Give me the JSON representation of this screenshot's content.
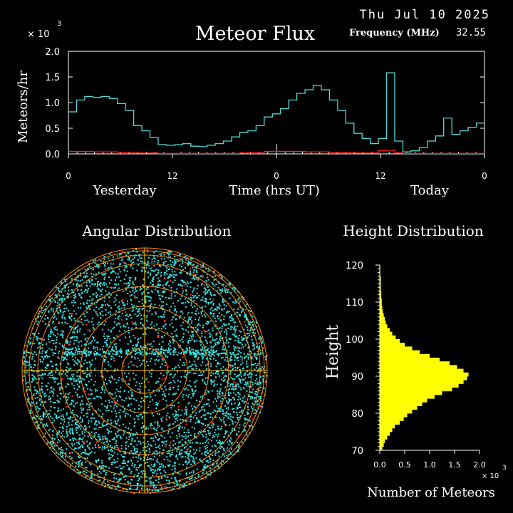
{
  "header": {
    "date": "Thu Jul 10 2025",
    "title": "Meteor Flux",
    "frequency_label": "Frequency (MHz)",
    "frequency_value": "32.55"
  },
  "colors": {
    "flux_line": "#4fd9d9",
    "baseline_line": "#ff2020",
    "height_bars": "#ffff00",
    "angular_points": "#33e6e6",
    "angular_points_alt": "#ff2020",
    "angular_rings": "#ff8c00",
    "angular_grid": "#ffd000"
  },
  "chart_data": [
    {
      "type": "line",
      "title": "Meteor Flux",
      "xlabel": "Time (hrs UT)",
      "ylabel": "Meteors/hr",
      "y_multiplier": "× 10",
      "y_multiplier_exp": "3",
      "ylim": [
        0,
        2.0
      ],
      "y_ticks": [
        "0.0",
        "0.5",
        "1.0",
        "1.5",
        "2.0"
      ],
      "x_ticks": [
        "0",
        "12",
        "0",
        "12",
        "0"
      ],
      "x_day_labels": [
        "Yesterday",
        "Today"
      ],
      "xlim": [
        0,
        48
      ],
      "series": [
        {
          "style": "step",
          "values": [
            0.82,
            1.05,
            1.12,
            1.1,
            1.12,
            1.08,
            0.98,
            0.85,
            0.55,
            0.45,
            0.32,
            0.18,
            0.17,
            0.18,
            0.2,
            0.15,
            0.14,
            0.17,
            0.2,
            0.25,
            0.33,
            0.42,
            0.45,
            0.55,
            0.72,
            0.78,
            0.88,
            1.05,
            1.18,
            1.25,
            1.33,
            1.25,
            1.05,
            0.85,
            0.6,
            0.4,
            0.3,
            0.2,
            0.3,
            1.58,
            0.25,
            0.04,
            0.06,
            0.12,
            0.25,
            0.35,
            0.7,
            0.38,
            0.45,
            0.52,
            0.6
          ]
        },
        {
          "style": "step",
          "values": [
            0.05,
            0.05,
            0.05,
            0.04,
            0.04,
            0.04,
            0.03,
            0.03,
            0.02,
            0.02,
            0.02,
            0.01,
            0.01,
            0.01,
            0.01,
            0.01,
            0.01,
            0.01,
            0.01,
            0.01,
            0.01,
            0.02,
            0.03,
            0.03,
            0.05,
            0.05,
            0.05,
            0.05,
            0.05,
            0.04,
            0.04,
            0.04,
            0.03,
            0.03,
            0.03,
            0.02,
            0.02,
            0.02,
            0.06,
            0.07,
            0.02,
            0.01,
            0.01,
            0.01,
            0.01,
            0.01,
            0.01,
            0.01,
            0.01,
            0.01,
            0.01
          ]
        }
      ]
    },
    {
      "type": "bar",
      "orientation": "horizontal",
      "title": "Height Distribution",
      "xlabel": "Number of Meteors",
      "x_multiplier": "× 10",
      "x_multiplier_exp": "3",
      "ylabel": "Height",
      "xlim": [
        0,
        2.0
      ],
      "x_ticks": [
        "0.0",
        "0.5",
        "1.0",
        "1.5",
        "2.0"
      ],
      "ylim": [
        70,
        120
      ],
      "y_ticks": [
        "70",
        "80",
        "90",
        "100",
        "110",
        "120"
      ],
      "bins_from": 70,
      "bin_width": 1,
      "values": [
        0.05,
        0.08,
        0.1,
        0.15,
        0.2,
        0.25,
        0.3,
        0.4,
        0.48,
        0.55,
        0.65,
        0.75,
        0.85,
        0.95,
        1.1,
        1.25,
        1.45,
        1.58,
        1.68,
        1.75,
        1.78,
        1.68,
        1.55,
        1.4,
        1.2,
        1.0,
        0.8,
        0.65,
        0.5,
        0.4,
        0.32,
        0.25,
        0.2,
        0.15,
        0.12,
        0.1,
        0.08,
        0.06,
        0.05,
        0.04,
        0.04,
        0.03,
        0.03,
        0.02,
        0.02,
        0.02,
        0.02,
        0.01,
        0.01,
        0.01
      ]
    },
    {
      "type": "scatter",
      "title": "Angular Distribution",
      "projection": "polar-sky"
    }
  ]
}
